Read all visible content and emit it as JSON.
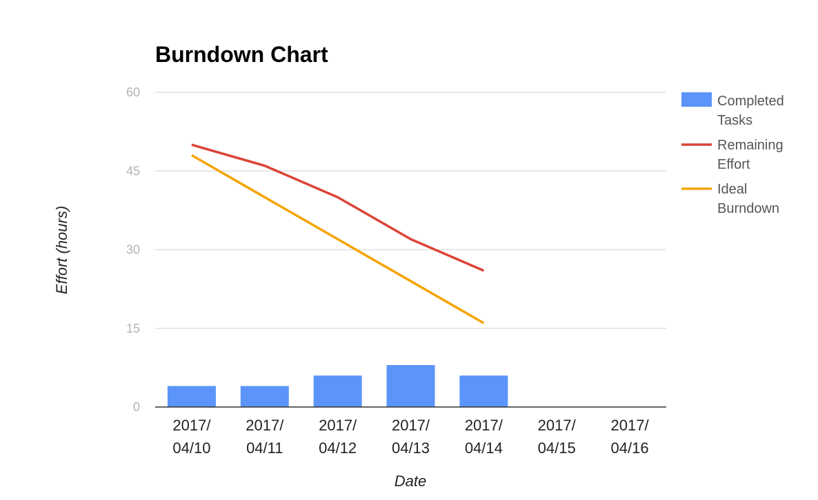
{
  "chart_data": {
    "type": "bar",
    "title": "Burndown Chart",
    "xlabel": "Date",
    "ylabel": "Effort (hours)",
    "ylim": [
      0,
      60
    ],
    "yticks": [
      0,
      15,
      30,
      45,
      60
    ],
    "grid": true,
    "legend_position": "right",
    "categories": [
      [
        "2017/",
        "04/10"
      ],
      [
        "2017/",
        "04/11"
      ],
      [
        "2017/",
        "04/12"
      ],
      [
        "2017/",
        "04/13"
      ],
      [
        "2017/",
        "04/14"
      ],
      [
        "2017/",
        "04/15"
      ],
      [
        "2017/",
        "04/16"
      ]
    ],
    "series": [
      {
        "name": [
          "Completed",
          "Tasks"
        ],
        "type": "bar",
        "color": "#5b95f9",
        "values": [
          4,
          4,
          6,
          8,
          6,
          null,
          null
        ]
      },
      {
        "name": [
          "Remaining",
          "Effort"
        ],
        "type": "line",
        "color": "#db4437",
        "values": [
          50,
          46,
          40,
          32,
          26,
          null,
          null
        ]
      },
      {
        "name": [
          "Ideal",
          "Burndown"
        ],
        "type": "line",
        "color": "#f4a400",
        "values": [
          48,
          40,
          32,
          24,
          16,
          null,
          null
        ]
      }
    ]
  }
}
